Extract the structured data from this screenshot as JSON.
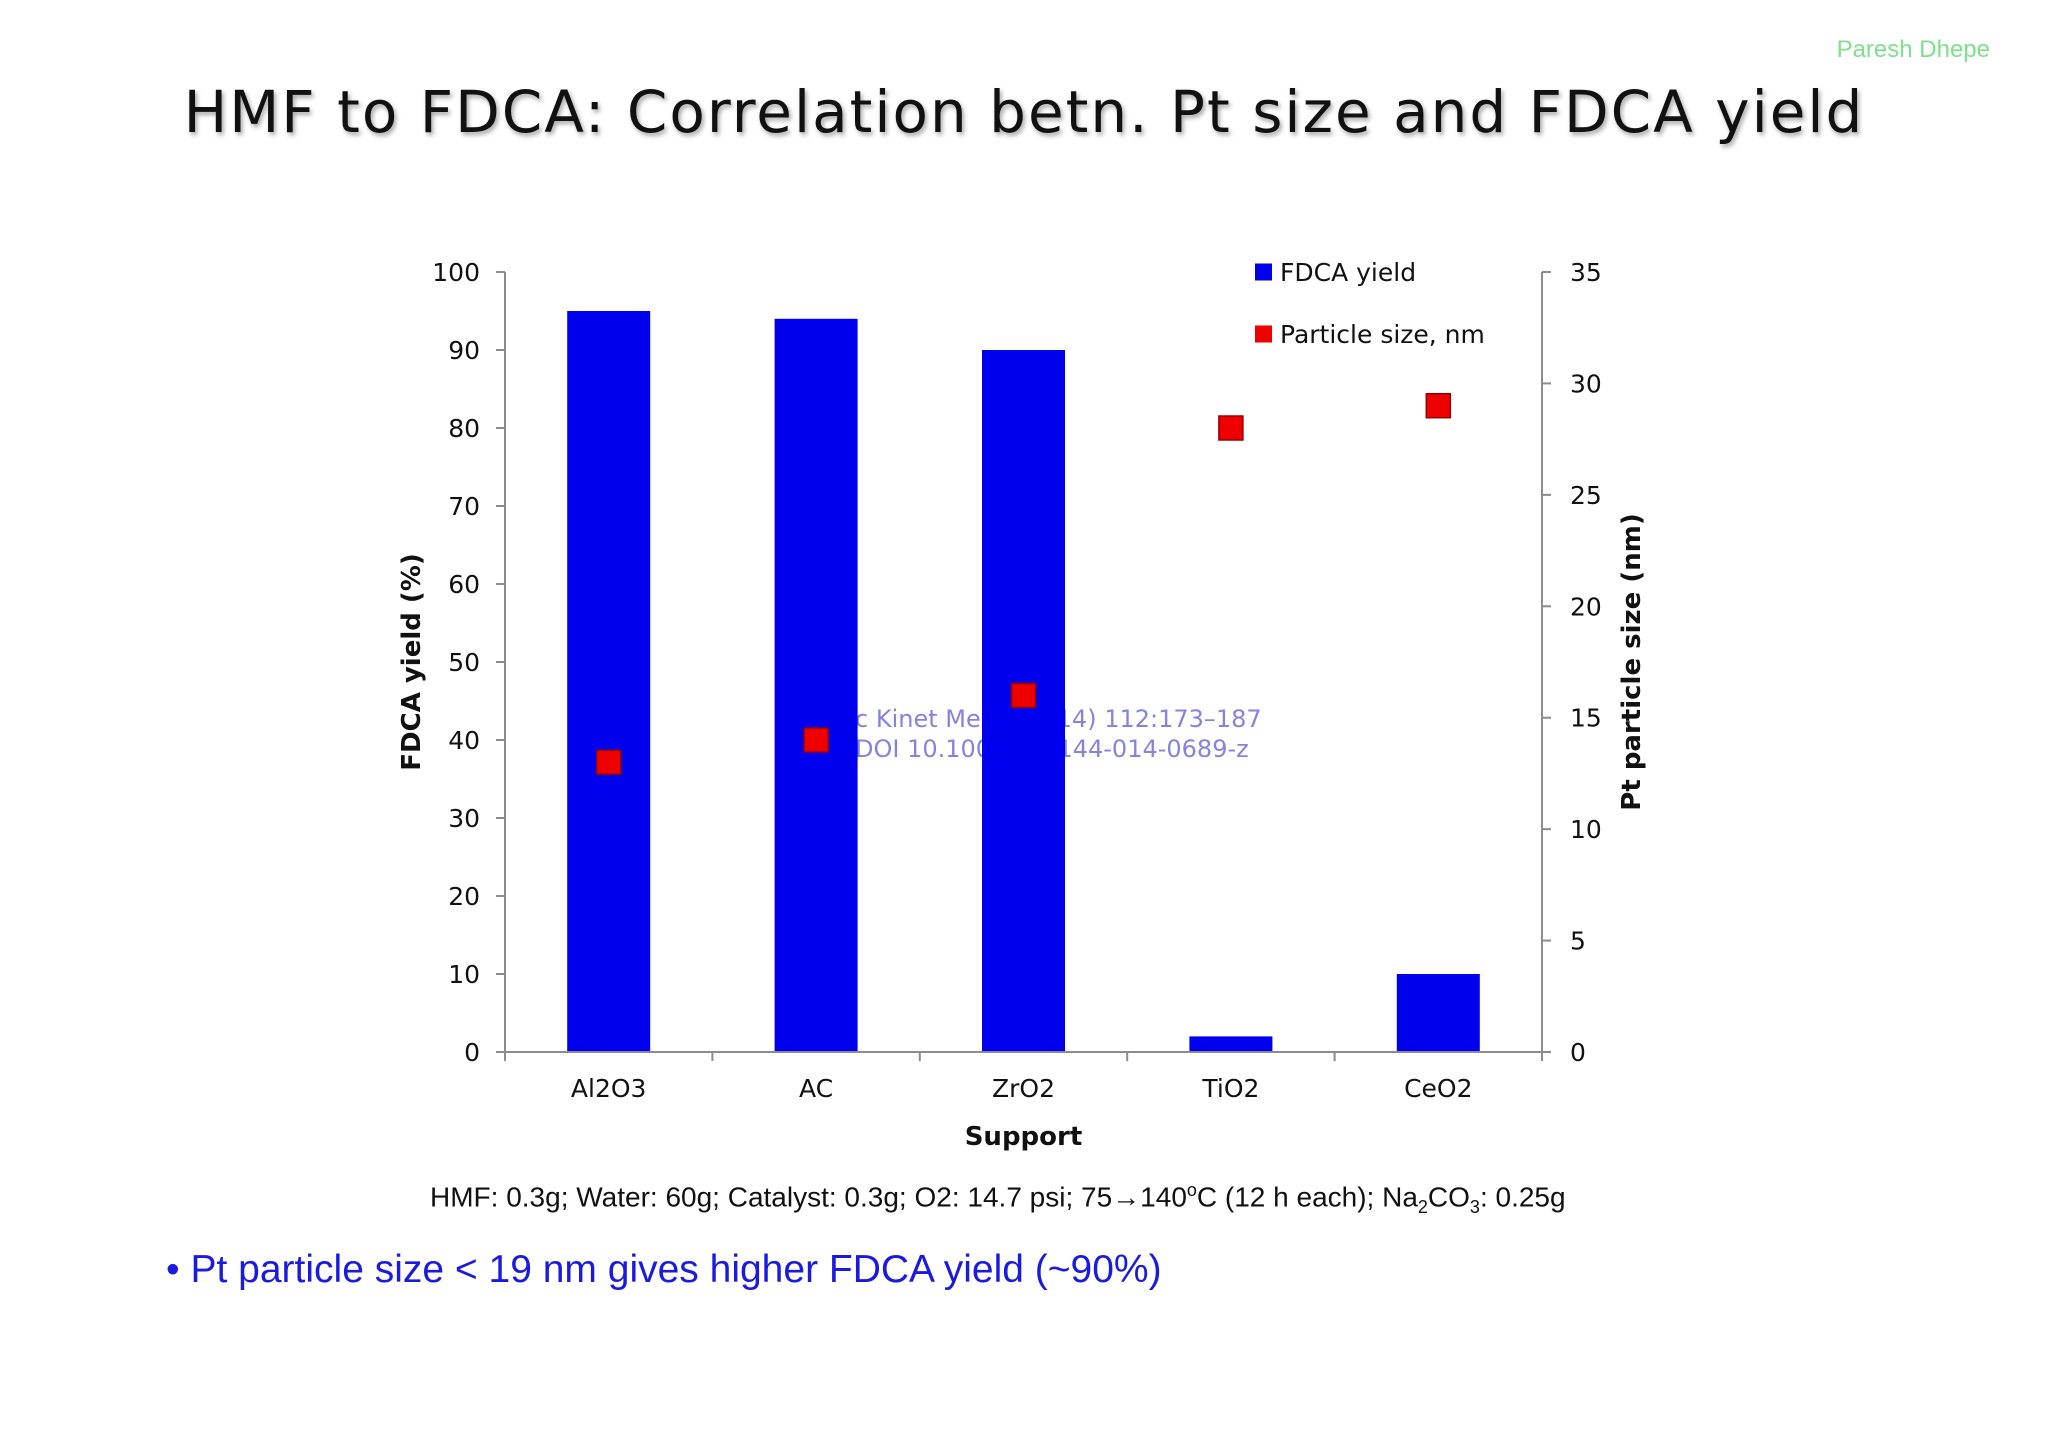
{
  "header": {
    "author": "Paresh Dhepe",
    "title": "HMF to FDCA: Correlation betn. Pt size and FDCA yield"
  },
  "chart_data": {
    "type": "bar",
    "categories": [
      "Al2O3",
      "AC",
      "ZrO2",
      "TiO2",
      "CeO2"
    ],
    "series": [
      {
        "name": "FDCA yield",
        "type": "bar",
        "axis": "left",
        "color": "#0000ee",
        "values": [
          95,
          94,
          90,
          2,
          10
        ]
      },
      {
        "name": "Particle size, nm",
        "type": "scatter",
        "axis": "right",
        "color": "#ee0000",
        "values": [
          13,
          14,
          16,
          28,
          29
        ]
      }
    ],
    "xlabel": "Support",
    "ylabel": "FDCA yield (%)",
    "y2label": "Pt particle size (nm)",
    "ylim": [
      0,
      100
    ],
    "y2lim": [
      0,
      35
    ],
    "yticks": [
      0,
      10,
      20,
      30,
      40,
      50,
      60,
      70,
      80,
      90,
      100
    ],
    "y2ticks": [
      0,
      5,
      10,
      15,
      20,
      25,
      30,
      35
    ],
    "legend": "top-right",
    "grid": false,
    "watermark": [
      "c Kinet Mech (2014) 112:173–187",
      "DOI 10.1007/s11144-014-0689-z"
    ]
  },
  "notes": {
    "conditions": {
      "part1": "HMF: 0.3g; Water: 60g; Catalyst: 0.3g;  O2: 14.7 psi; 75",
      "arrow": "→",
      "part2": "140",
      "deg": "o",
      "part3": "C (12 h each); Na",
      "sub1": "2",
      "part4": "CO",
      "sub2": "3",
      "part5": ": 0.25g"
    },
    "bullet": "• Pt particle size < 19 nm gives higher FDCA yield (~90%)"
  }
}
